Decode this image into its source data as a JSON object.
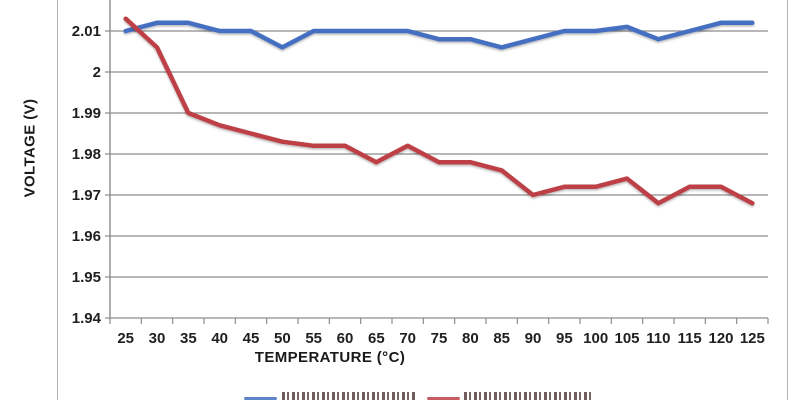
{
  "chart_data": {
    "type": "line",
    "title": "",
    "xlabel": "TEMPERATURE (°C)",
    "ylabel": "VOLTAGE (V)",
    "x": [
      25,
      30,
      35,
      40,
      45,
      50,
      55,
      60,
      65,
      70,
      75,
      80,
      85,
      90,
      95,
      100,
      105,
      110,
      115,
      120,
      125
    ],
    "x_tick_labels": [
      "25",
      "30",
      "35",
      "40",
      "45",
      "50",
      "55",
      "60",
      "65",
      "70",
      "75",
      "80",
      "85",
      "90",
      "95",
      "100",
      "105",
      "110",
      "115",
      "120",
      "125"
    ],
    "y_ticks": [
      2.01,
      2.0,
      1.99,
      1.98,
      1.97,
      1.96,
      1.95,
      1.94
    ],
    "y_tick_labels": [
      "2.01",
      "2",
      "1.99",
      "1.98",
      "1.97",
      "1.96",
      "1.95",
      "1.94"
    ],
    "ylim_visible": [
      1.94,
      2.0175
    ],
    "grid": true,
    "legend_position": "bottom-center (clipped by image edge, labels unreadable)",
    "series": [
      {
        "name": "blue-series",
        "color": "#4470C2",
        "values": [
          2.01,
          2.012,
          2.012,
          2.01,
          2.01,
          2.006,
          2.01,
          2.01,
          2.01,
          2.01,
          2.008,
          2.008,
          2.006,
          2.008,
          2.01,
          2.01,
          2.011,
          2.008,
          2.01,
          2.012,
          2.012
        ]
      },
      {
        "name": "red-series",
        "color": "#BE4046",
        "values": [
          2.013,
          2.006,
          1.99,
          1.987,
          1.985,
          1.983,
          1.982,
          1.982,
          1.978,
          1.982,
          1.978,
          1.978,
          1.976,
          1.97,
          1.972,
          1.972,
          1.974,
          1.968,
          1.972,
          1.972,
          1.968
        ]
      }
    ]
  },
  "legend": {
    "entries": [
      {
        "swatch_color": "#4470C2",
        "label": ""
      },
      {
        "swatch_color": "#BE4046",
        "label": ""
      }
    ]
  },
  "colors": {
    "background": "#ffffff",
    "gridline": "#8c8c8c",
    "axis": "#8c8c8c",
    "tick_text": "#1f1f1f",
    "figure_border": "#b3b3b3",
    "series_blue": "#4470C2",
    "series_red": "#BE4046"
  }
}
